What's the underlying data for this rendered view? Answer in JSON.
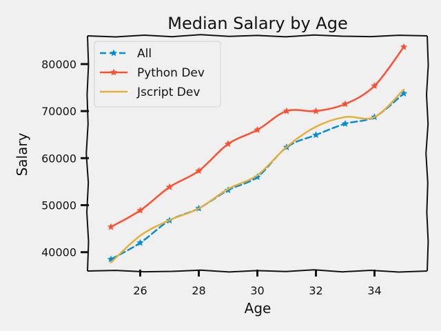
{
  "chart_data": {
    "type": "line",
    "title": "Median Salary by Age",
    "xlabel": "Age",
    "ylabel": "Salary",
    "x": [
      25,
      26,
      27,
      28,
      29,
      30,
      31,
      32,
      33,
      34,
      35
    ],
    "xlim": [
      24.2,
      35.8
    ],
    "ylim": [
      36000,
      86000
    ],
    "xticks": [
      26,
      28,
      30,
      32,
      34
    ],
    "yticks": [
      40000,
      50000,
      60000,
      70000,
      80000
    ],
    "grid": false,
    "legend_position": "top-left",
    "series": [
      {
        "name": "All",
        "values": [
          38496,
          42000,
          46752,
          49320,
          53200,
          56000,
          62316,
          64928,
          67317,
          68748,
          73752
        ],
        "color": "#008fd5",
        "linestyle": "dashed",
        "marker": "star"
      },
      {
        "name": "Python Dev",
        "values": [
          45372,
          48876,
          53850,
          57287,
          63016,
          65998,
          70003,
          70000,
          71496,
          75370,
          83640
        ],
        "color": "#fc4f30",
        "linestyle": "solid",
        "marker": "star"
      },
      {
        "name": "Jscript Dev",
        "values": [
          37810,
          43515,
          46823,
          49293,
          53437,
          56373,
          62375,
          66674,
          68745,
          68746,
          74583
        ],
        "color": "#e5ae38",
        "linestyle": "solid",
        "marker": "none"
      }
    ]
  }
}
